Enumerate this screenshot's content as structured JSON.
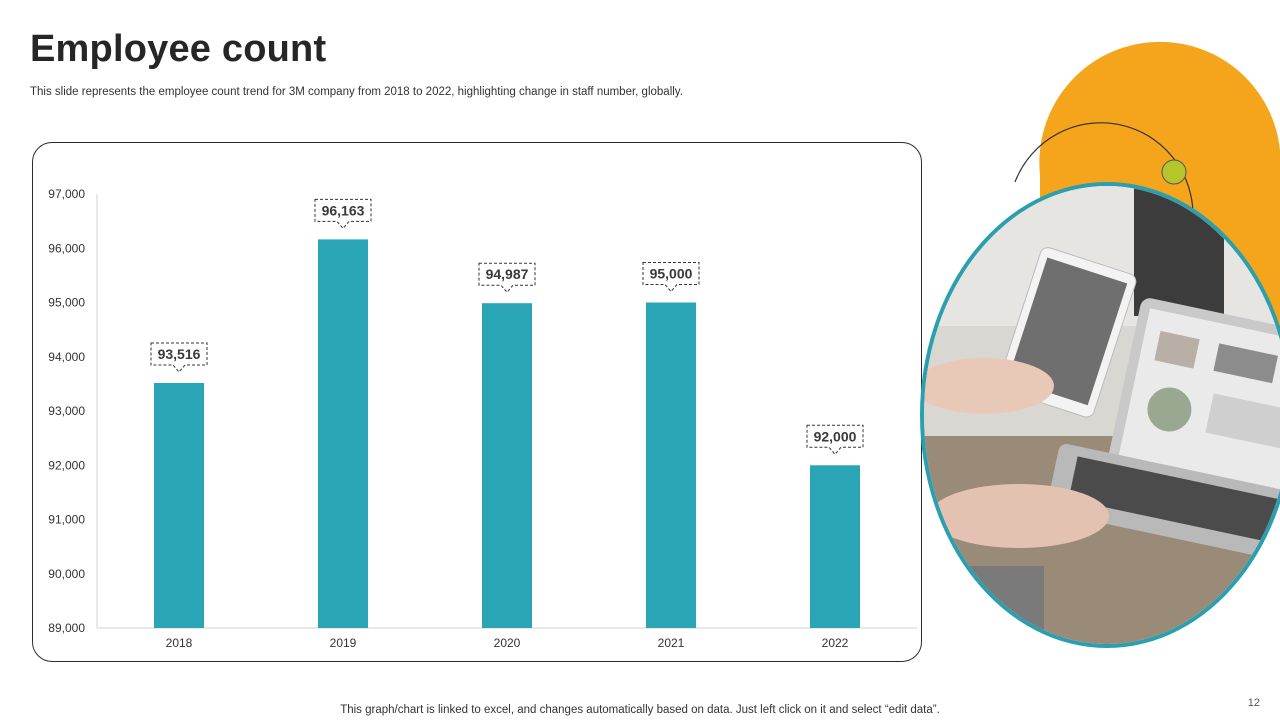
{
  "header": {
    "title": "Employee count",
    "subtitle": "This slide represents the employee count trend for 3M company from 2018 to 2022, highlighting change in staff number, globally."
  },
  "footer": {
    "note": "This graph/chart is linked to excel, and changes automatically based on data. Just left click on it and select “edit data”.",
    "page_number": "12"
  },
  "colors": {
    "bar": "#2aa5b5",
    "accent_orange": "#f5a51c",
    "accent_teal": "#2a9fb0",
    "accent_lime": "#b5c62a"
  },
  "illustration": {
    "icon": "laptop-tablet-photo"
  },
  "chart_data": {
    "type": "bar",
    "title": "",
    "xlabel": "",
    "ylabel": "",
    "categories": [
      "2018",
      "2019",
      "2020",
      "2021",
      "2022"
    ],
    "values": [
      93516,
      96163,
      94987,
      95000,
      92000
    ],
    "data_labels": [
      "93,516",
      "96,163",
      "94,987",
      "95,000",
      "92,000"
    ],
    "ylim": [
      89000,
      97000
    ],
    "yticks": [
      89000,
      90000,
      91000,
      92000,
      93000,
      94000,
      95000,
      96000,
      97000
    ],
    "ytick_labels": [
      "89,000",
      "90,000",
      "91,000",
      "92,000",
      "93,000",
      "94,000",
      "95,000",
      "96,000",
      "97,000"
    ],
    "grid": false,
    "legend": "none"
  }
}
